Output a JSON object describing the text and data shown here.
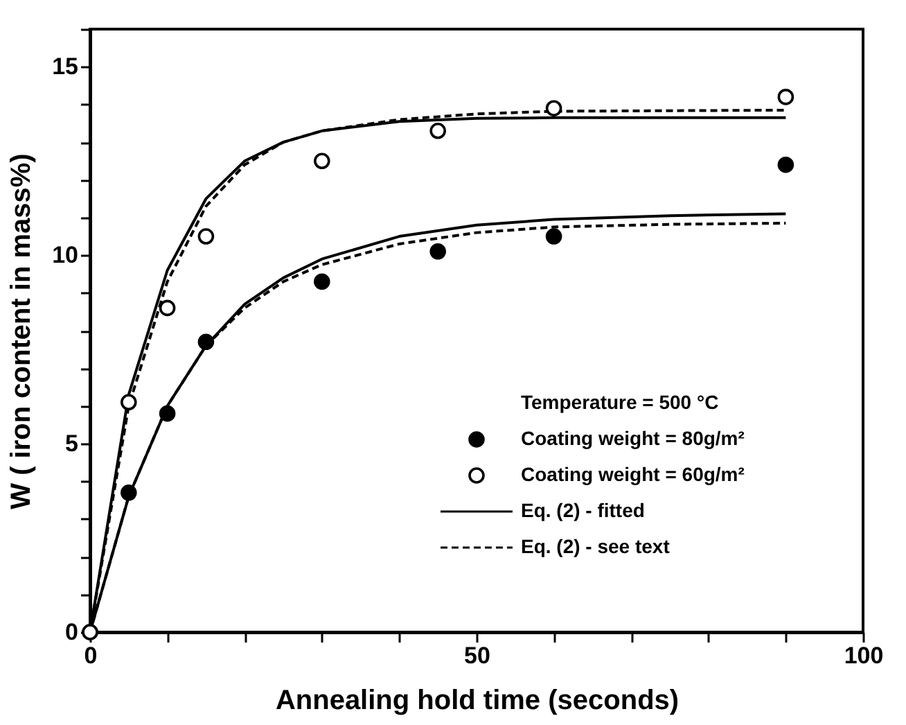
{
  "chart_data": {
    "type": "scatter",
    "xlabel": "Annealing hold time (seconds)",
    "ylabel": "W ( iron content in mass%)",
    "legend_title": "Temperature    =  500 °C",
    "legend": "bottom right",
    "grid": false,
    "xlim": [
      0,
      100
    ],
    "ylim": [
      0,
      16
    ],
    "xticks": [
      0,
      {
        "value": 10,
        "label": null
      },
      {
        "value": 20,
        "label": null
      },
      {
        "value": 30,
        "label": null
      },
      {
        "value": 40,
        "label": null
      },
      50,
      {
        "value": 60,
        "label": null
      },
      {
        "value": 70,
        "label": null
      },
      {
        "value": 80,
        "label": null
      },
      {
        "value": 90,
        "label": null
      },
      100
    ],
    "yticks": [
      0,
      {
        "value": 1,
        "label": null
      },
      {
        "value": 2,
        "label": null
      },
      {
        "value": 3,
        "label": null
      },
      {
        "value": 4,
        "label": null
      },
      5,
      {
        "value": 6,
        "label": null
      },
      {
        "value": 7,
        "label": null
      },
      {
        "value": 8,
        "label": null
      },
      {
        "value": 9,
        "label": null
      },
      10,
      {
        "value": 11,
        "label": null
      },
      {
        "value": 12,
        "label": null
      },
      {
        "value": 13,
        "label": null
      },
      {
        "value": 14,
        "label": null
      },
      15,
      {
        "value": 16,
        "label": null
      }
    ],
    "series": [
      {
        "type": "line",
        "name": "Eq. (2) - fitted",
        "color": "#000000",
        "line_style": "solid",
        "marker": "none",
        "x": [
          0,
          5,
          10,
          15,
          20,
          25,
          30,
          40,
          50,
          60,
          90
        ],
        "values": [
          0,
          6.3,
          9.6,
          11.5,
          12.5,
          13.0,
          13.3,
          13.55,
          13.63,
          13.65,
          13.65
        ]
      },
      {
        "type": "line",
        "name": "Eq. (2) - see text",
        "color": "#000000",
        "line_style": "dashed",
        "marker": "none",
        "x": [
          0,
          5,
          10,
          15,
          20,
          25,
          30,
          40,
          50,
          60,
          90
        ],
        "values": [
          0,
          6.0,
          9.3,
          11.3,
          12.4,
          13.0,
          13.3,
          13.6,
          13.75,
          13.82,
          13.85
        ]
      },
      {
        "type": "line",
        "color": "#000000",
        "line_style": "solid",
        "marker": "none",
        "x": [
          0,
          5,
          10,
          15,
          20,
          25,
          30,
          40,
          50,
          60,
          75,
          90
        ],
        "values": [
          0,
          3.6,
          6.0,
          7.6,
          8.7,
          9.4,
          9.9,
          10.5,
          10.8,
          10.95,
          11.05,
          11.1
        ]
      },
      {
        "type": "line",
        "color": "#000000",
        "line_style": "dashed",
        "marker": "none",
        "x": [
          0,
          5,
          10,
          15,
          20,
          25,
          30,
          40,
          50,
          60,
          75,
          90
        ],
        "values": [
          0,
          3.6,
          6.0,
          7.6,
          8.6,
          9.3,
          9.75,
          10.3,
          10.6,
          10.75,
          10.82,
          10.85
        ]
      },
      {
        "name": "Coating weight = 80g/m²",
        "color": "#000000",
        "marker": "circle",
        "x": [
          0,
          5,
          10,
          15,
          30,
          45,
          60,
          90
        ],
        "values": [
          0,
          3.7,
          5.8,
          7.7,
          9.3,
          10.1,
          10.5,
          12.4
        ]
      },
      {
        "name": "Coating weight = 60g/m²",
        "color": "#ffffff",
        "marker": "circle",
        "x": [
          0,
          5,
          10,
          15,
          30,
          45,
          60,
          90
        ],
        "values": [
          0,
          6.1,
          8.6,
          10.5,
          12.5,
          13.3,
          13.9,
          14.2
        ]
      }
    ]
  }
}
